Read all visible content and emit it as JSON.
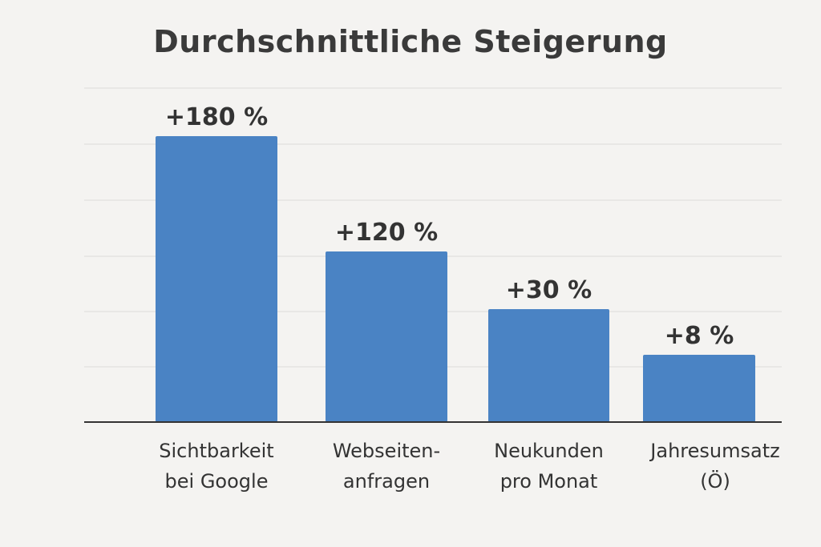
{
  "chart_data": {
    "type": "bar",
    "title": "Durchschnittliche Steigerung",
    "categories": [
      [
        "Sichtbarkeit",
        "bei Google"
      ],
      [
        "Webseiten-",
        "anfragen"
      ],
      [
        "Neukunden",
        "pro Monat"
      ],
      [
        "Jahresumsatz",
        "(Ö)"
      ]
    ],
    "values": [
      180,
      120,
      30,
      8
    ],
    "data_labels": [
      "+180 %",
      "+120 %",
      "+30 %",
      "+8 %"
    ],
    "unit": "%",
    "grid": true,
    "bar_color": "#4a83c4",
    "xlabel": "",
    "ylabel": ""
  }
}
